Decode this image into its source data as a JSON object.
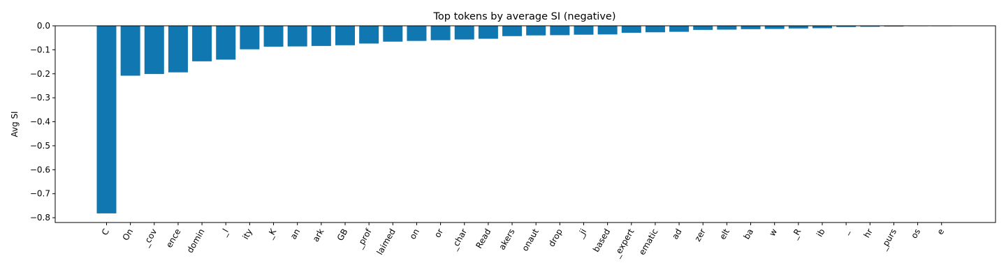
{
  "chart_data": {
    "type": "bar",
    "title": "Top tokens by average SI (negative)",
    "xlabel": "",
    "ylabel": "Avg SI",
    "ylim": [
      -0.82,
      0.0
    ],
    "yticks": [
      0.0,
      -0.1,
      -0.2,
      -0.3,
      -0.4,
      -0.5,
      -0.6,
      -0.7,
      -0.8
    ],
    "ytick_labels": [
      "0.0",
      "−0.1",
      "−0.2",
      "−0.3",
      "−0.4",
      "−0.5",
      "−0.6",
      "−0.7",
      "−0.8"
    ],
    "bar_color": "#1177b0",
    "grid": false,
    "categories": [
      "C",
      "On",
      "_cov",
      "ence",
      "domin",
      "_l",
      "ity",
      "_K",
      "an",
      "ark",
      "GB",
      "_prof",
      "laimed",
      "on",
      "or",
      "_char",
      "Read",
      "akers",
      "onaut",
      "drop",
      "_ji",
      "based",
      "_expert",
      "ematic",
      "ad",
      "zer",
      "elt",
      "ba",
      "w",
      "_R",
      "ib",
      "_",
      "hr",
      "_purs",
      "os",
      "e"
    ],
    "values": [
      -0.782,
      -0.208,
      -0.201,
      -0.194,
      -0.148,
      -0.141,
      -0.098,
      -0.087,
      -0.086,
      -0.084,
      -0.081,
      -0.074,
      -0.066,
      -0.063,
      -0.06,
      -0.057,
      -0.054,
      -0.043,
      -0.04,
      -0.039,
      -0.037,
      -0.036,
      -0.029,
      -0.027,
      -0.025,
      -0.017,
      -0.016,
      -0.014,
      -0.013,
      -0.011,
      -0.01,
      -0.005,
      -0.004,
      -0.003,
      -0.001,
      -0.001
    ]
  }
}
